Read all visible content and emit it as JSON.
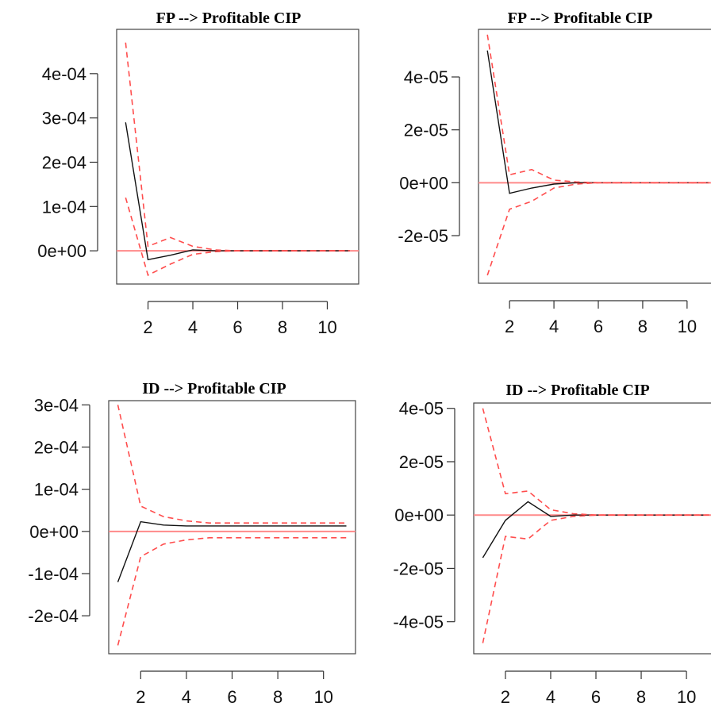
{
  "chart_data": [
    {
      "type": "line",
      "title": "FP --> Profitable CIP",
      "x": [
        1,
        2,
        3,
        4,
        5,
        6,
        7,
        8,
        9,
        10,
        11
      ],
      "xticks": [
        2,
        4,
        6,
        8,
        10
      ],
      "xlim": [
        0.6,
        11.4
      ],
      "ylim": [
        -7.5e-05,
        0.0005
      ],
      "yticks": [
        0,
        0.0001,
        0.0002,
        0.0003,
        0.0004
      ],
      "ytick_labels": [
        "0e+00",
        "1e-04",
        "2e-04",
        "3e-04",
        "4e-04"
      ],
      "zero_line": true,
      "series": [
        {
          "role": "irf",
          "values": [
            0.00029,
            -2e-05,
            -1e-05,
            2e-06,
            0,
            0,
            0,
            0,
            0,
            0,
            0
          ]
        },
        {
          "role": "upper",
          "values": [
            0.00047,
            1e-05,
            3e-05,
            1e-05,
            2e-06,
            0,
            0,
            0,
            0,
            0,
            0
          ]
        },
        {
          "role": "lower",
          "values": [
            0.00012,
            -5.5e-05,
            -3e-05,
            -8e-06,
            -2e-06,
            0,
            0,
            0,
            0,
            0,
            0
          ]
        }
      ]
    },
    {
      "type": "line",
      "title": "FP --> Profitable CIP",
      "x": [
        1,
        2,
        3,
        4,
        5,
        6,
        7,
        8,
        9,
        10,
        11
      ],
      "xticks": [
        2,
        4,
        6,
        8,
        10
      ],
      "xlim": [
        0.6,
        11.4
      ],
      "ylim": [
        -3.8e-05,
        5.8e-05
      ],
      "yticks": [
        -2e-05,
        0,
        2e-05,
        4e-05
      ],
      "ytick_labels": [
        "-2e-05",
        "0e+00",
        "2e-05",
        "4e-05"
      ],
      "zero_line": true,
      "series": [
        {
          "role": "irf",
          "values": [
            5e-05,
            -4e-06,
            -2e-06,
            -5e-07,
            0,
            0,
            0,
            0,
            0,
            0,
            0
          ]
        },
        {
          "role": "upper",
          "values": [
            5.6e-05,
            3e-06,
            5e-06,
            1e-06,
            3e-07,
            0,
            0,
            0,
            0,
            0,
            0
          ]
        },
        {
          "role": "lower",
          "values": [
            -3.5e-05,
            -1e-05,
            -7e-06,
            -2e-06,
            -5e-07,
            0,
            0,
            0,
            0,
            0,
            0
          ]
        }
      ]
    },
    {
      "type": "line",
      "title": "ID --> Profitable CIP",
      "x": [
        1,
        2,
        3,
        4,
        5,
        6,
        7,
        8,
        9,
        10,
        11
      ],
      "xticks": [
        2,
        4,
        6,
        8,
        10
      ],
      "xlim": [
        0.6,
        11.4
      ],
      "ylim": [
        -0.00029,
        0.00031
      ],
      "yticks": [
        -0.0002,
        -0.0001,
        0,
        0.0001,
        0.0002,
        0.0003
      ],
      "ytick_labels": [
        "-2e-04",
        "-1e-04",
        "0e+00",
        "1e-04",
        "2e-04",
        "3e-04"
      ],
      "zero_line": true,
      "series": [
        {
          "role": "irf",
          "values": [
            -0.00012,
            2.3e-05,
            1.5e-05,
            1.3e-05,
            1.3e-05,
            1.3e-05,
            1.3e-05,
            1.3e-05,
            1.3e-05,
            1.3e-05,
            1.3e-05
          ]
        },
        {
          "role": "upper",
          "values": [
            0.0003,
            6e-05,
            3.5e-05,
            2.5e-05,
            2e-05,
            2e-05,
            2e-05,
            2e-05,
            2e-05,
            2e-05,
            2e-05
          ]
        },
        {
          "role": "lower",
          "values": [
            -0.00027,
            -6e-05,
            -3e-05,
            -2e-05,
            -1.5e-05,
            -1.5e-05,
            -1.5e-05,
            -1.5e-05,
            -1.5e-05,
            -1.5e-05,
            -1.5e-05
          ]
        }
      ]
    },
    {
      "type": "line",
      "title": "ID --> Profitable CIP",
      "x": [
        1,
        2,
        3,
        4,
        5,
        6,
        7,
        8,
        9,
        10,
        11
      ],
      "xticks": [
        2,
        4,
        6,
        8,
        10
      ],
      "xlim": [
        0.6,
        11.4
      ],
      "ylim": [
        -5.2e-05,
        4.2e-05
      ],
      "yticks": [
        -4e-05,
        -2e-05,
        0,
        2e-05,
        4e-05
      ],
      "ytick_labels": [
        "-4e-05",
        "-2e-05",
        "0e+00",
        "2e-05",
        "4e-05"
      ],
      "zero_line": true,
      "series": [
        {
          "role": "irf",
          "values": [
            -1.6e-05,
            -2e-06,
            5e-06,
            -5e-07,
            0,
            0,
            0,
            0,
            0,
            0,
            0
          ]
        },
        {
          "role": "upper",
          "values": [
            4e-05,
            8e-06,
            9e-06,
            2e-06,
            5e-07,
            0,
            0,
            0,
            0,
            0,
            0
          ]
        },
        {
          "role": "lower",
          "values": [
            -4.8e-05,
            -8e-06,
            -9e-06,
            -2e-06,
            -5e-07,
            0,
            0,
            0,
            0,
            0,
            0
          ]
        }
      ]
    }
  ]
}
